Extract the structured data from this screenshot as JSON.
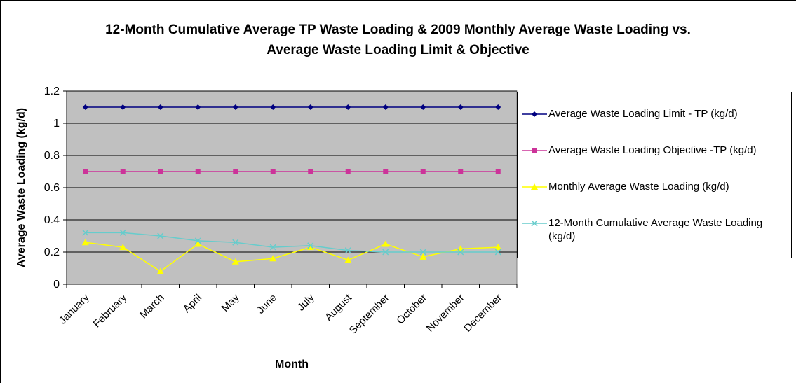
{
  "chart_data": {
    "type": "line",
    "title": "12-Month Cumulative Average TP Waste Loading & 2009 Monthly Average Waste Loading vs. Average Waste Loading Limit & Objective",
    "x_label": "Month",
    "y_label": "Average Waste Loading (kg/d)",
    "categories": [
      "January",
      "February",
      "March",
      "April",
      "May",
      "June",
      "July",
      "August",
      "September",
      "October",
      "November",
      "December"
    ],
    "series": [
      {
        "name": "Average Waste Loading Limit - TP (kg/d)",
        "color": "#000080",
        "marker": "diamond",
        "values": [
          1.1,
          1.1,
          1.1,
          1.1,
          1.1,
          1.1,
          1.1,
          1.1,
          1.1,
          1.1,
          1.1,
          1.1
        ]
      },
      {
        "name": "Average Waste Loading Objective -TP (kg/d)",
        "color": "#cc3399",
        "marker": "square",
        "values": [
          0.7,
          0.7,
          0.7,
          0.7,
          0.7,
          0.7,
          0.7,
          0.7,
          0.7,
          0.7,
          0.7,
          0.7
        ]
      },
      {
        "name": "Monthly Average Waste Loading (kg/d)",
        "color": "#ffff00",
        "marker": "triangle",
        "values": [
          0.26,
          0.23,
          0.08,
          0.25,
          0.14,
          0.16,
          0.23,
          0.15,
          0.25,
          0.17,
          0.22,
          0.23
        ]
      },
      {
        "name": "12-Month Cumulative Average Waste Loading (kg/d)",
        "color": "#66cccc",
        "marker": "x",
        "values": [
          0.32,
          0.32,
          0.3,
          0.27,
          0.26,
          0.23,
          0.24,
          0.21,
          0.2,
          0.2,
          0.2,
          0.2
        ]
      }
    ],
    "ylim": [
      0,
      1.2
    ],
    "yticks": [
      0,
      0.2,
      0.4,
      0.6,
      0.8,
      1,
      1.2
    ],
    "grid": true,
    "legend": "right"
  }
}
